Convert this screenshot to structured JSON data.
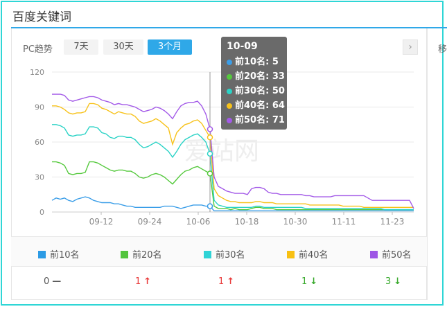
{
  "header": {
    "title": "百度关键词"
  },
  "controls": {
    "pc_label": "PC趋势",
    "tabs": [
      {
        "label": "7天",
        "active": false
      },
      {
        "label": "30天",
        "active": false
      },
      {
        "label": "3个月",
        "active": true
      }
    ],
    "next_icon": "chevron-right-icon",
    "side_label": "移"
  },
  "watermark": "爱站网",
  "tooltip": {
    "date": "10-09",
    "rows": [
      {
        "label": "前10名: 5",
        "color": "#3b9ee8"
      },
      {
        "label": "前20名: 33",
        "color": "#55c93d"
      },
      {
        "label": "前30名: 50",
        "color": "#2bd3c6"
      },
      {
        "label": "前40名: 64",
        "color": "#f7c21a"
      },
      {
        "label": "前50名: 71",
        "color": "#a35ae8"
      }
    ]
  },
  "chart_data": {
    "type": "line",
    "x_ticks": [
      "09-12",
      "09-24",
      "10-06",
      "10-18",
      "10-30",
      "11-11",
      "11-23"
    ],
    "y_ticks": [
      0,
      30,
      60,
      90,
      120
    ],
    "ylim": [
      0,
      120
    ],
    "hover_date": "10-09",
    "series": [
      {
        "name": "前10名",
        "color": "#3b9ee8",
        "values": [
          10,
          12,
          11,
          12,
          10,
          9,
          11,
          12,
          13,
          12,
          10,
          9,
          8,
          8,
          8,
          7,
          7,
          6,
          5,
          5,
          4,
          4,
          4,
          4,
          4,
          4,
          4,
          5,
          5,
          5,
          4,
          3,
          4,
          5,
          6,
          6,
          6,
          5,
          5,
          1,
          1,
          1,
          1,
          1,
          1,
          1,
          1,
          1,
          1,
          1,
          1,
          1,
          1,
          1,
          1,
          1,
          1,
          1,
          1,
          1,
          1,
          1,
          1,
          1,
          1,
          1,
          1,
          1,
          1,
          1,
          1,
          1,
          1,
          1,
          1,
          1,
          1,
          1,
          1,
          1,
          1,
          1,
          1,
          1,
          1,
          1,
          1,
          1
        ]
      },
      {
        "name": "前20名",
        "color": "#55c93d",
        "values": [
          43,
          43,
          42,
          40,
          33,
          32,
          33,
          33,
          34,
          43,
          43,
          42,
          40,
          38,
          36,
          35,
          36,
          36,
          35,
          35,
          33,
          30,
          29,
          30,
          32,
          33,
          32,
          30,
          27,
          24,
          28,
          32,
          35,
          36,
          38,
          39,
          37,
          35,
          33,
          5,
          3,
          3,
          3,
          2,
          3,
          2,
          2,
          2,
          3,
          4,
          4,
          3,
          3,
          3,
          2,
          2,
          2,
          2,
          2,
          2,
          2,
          2,
          2,
          2,
          2,
          2,
          2,
          2,
          2,
          2,
          2,
          2,
          2,
          2,
          2,
          2,
          2,
          2,
          2,
          2,
          2,
          2,
          2,
          2,
          2,
          2,
          2,
          2
        ]
      },
      {
        "name": "前30名",
        "color": "#2bd3c6",
        "values": [
          75,
          75,
          74,
          72,
          66,
          65,
          66,
          66,
          67,
          73,
          73,
          72,
          68,
          67,
          64,
          63,
          65,
          65,
          64,
          64,
          62,
          58,
          55,
          56,
          58,
          60,
          58,
          55,
          52,
          47,
          52,
          58,
          62,
          64,
          66,
          67,
          64,
          60,
          50,
          10,
          6,
          5,
          4,
          4,
          4,
          4,
          4,
          4,
          4,
          5,
          5,
          4,
          4,
          4,
          4,
          4,
          4,
          4,
          4,
          4,
          4,
          3,
          3,
          3,
          3,
          3,
          3,
          3,
          3,
          3,
          3,
          3,
          3,
          3,
          3,
          3,
          3,
          3,
          3,
          3,
          2,
          2,
          2,
          2,
          2,
          2,
          2,
          2
        ]
      },
      {
        "name": "前40名",
        "color": "#f7c21a",
        "values": [
          91,
          91,
          90,
          88,
          85,
          84,
          85,
          85,
          86,
          93,
          93,
          92,
          89,
          88,
          86,
          84,
          86,
          85,
          84,
          84,
          82,
          78,
          76,
          77,
          78,
          80,
          78,
          75,
          72,
          58,
          68,
          72,
          75,
          76,
          78,
          79,
          76,
          70,
          64,
          20,
          14,
          12,
          10,
          9,
          9,
          8,
          8,
          8,
          8,
          9,
          9,
          8,
          8,
          8,
          7,
          7,
          7,
          7,
          7,
          7,
          7,
          7,
          6,
          6,
          6,
          6,
          6,
          6,
          6,
          6,
          5,
          5,
          5,
          5,
          5,
          4,
          4,
          4,
          4,
          4,
          4,
          4,
          4,
          4,
          4,
          4,
          4,
          4
        ]
      },
      {
        "name": "前50名",
        "color": "#a35ae8",
        "values": [
          101,
          101,
          101,
          100,
          96,
          95,
          96,
          97,
          98,
          99,
          99,
          98,
          96,
          95,
          94,
          92,
          93,
          92,
          92,
          91,
          90,
          88,
          86,
          87,
          88,
          90,
          89,
          87,
          84,
          80,
          86,
          91,
          93,
          94,
          94,
          95,
          91,
          84,
          71,
          30,
          22,
          20,
          18,
          17,
          16,
          16,
          16,
          15,
          20,
          21,
          21,
          20,
          17,
          16,
          16,
          15,
          15,
          15,
          15,
          15,
          15,
          14,
          14,
          13,
          13,
          13,
          13,
          13,
          14,
          14,
          14,
          14,
          14,
          14,
          14,
          14,
          12,
          10,
          10,
          10,
          10,
          10,
          10,
          10,
          10,
          10,
          10,
          3
        ]
      }
    ]
  },
  "legend": [
    {
      "label": "前10名",
      "color": "#2c9be5"
    },
    {
      "label": "前20名",
      "color": "#53c43d"
    },
    {
      "label": "前30名",
      "color": "#2fd3d6"
    },
    {
      "label": "前40名",
      "color": "#f8c012"
    },
    {
      "label": "前50名",
      "color": "#9d55e5"
    }
  ],
  "changes": [
    {
      "value": "0",
      "arrow": "—",
      "color": "#555"
    },
    {
      "value": "1",
      "arrow": "↑",
      "color": "#e93a3a"
    },
    {
      "value": "1",
      "arrow": "↑",
      "color": "#e93a3a"
    },
    {
      "value": "1",
      "arrow": "↓",
      "color": "#3aaa2e"
    },
    {
      "value": "3",
      "arrow": "↓",
      "color": "#3aaa2e"
    }
  ]
}
